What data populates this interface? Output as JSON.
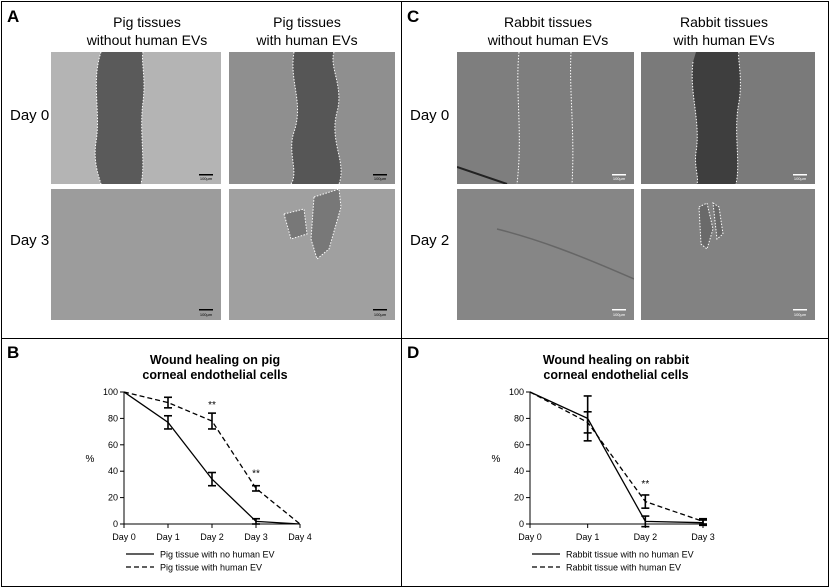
{
  "panels": {
    "A": {
      "letter": "A",
      "col1": "Pig tissues\nwithout human EVs",
      "col2": "Pig tissues\nwith human EVs",
      "row1": "Day 0",
      "row2": "Day 3"
    },
    "C": {
      "letter": "C",
      "col1": "Rabbit tissues\nwithout human EVs",
      "col2": "Rabbit tissues\nwith human EVs",
      "row1": "Day 0",
      "row2": "Day 2"
    },
    "B": {
      "letter": "B",
      "title": "Wound healing on pig\ncorneal endothelial cells"
    },
    "D": {
      "letter": "D",
      "title": "Wound healing on rabbit\ncorneal endothelial cells"
    }
  },
  "scale_bar_label": "100µm",
  "colors": {
    "micro_light": "#a9a9a9",
    "micro_dark": "#5f5f5f",
    "line": "#000000"
  },
  "chart_data": [
    {
      "type": "line",
      "title": "Wound healing on pig\ncorneal endothelial cells",
      "xlabel": "",
      "ylabel": "%",
      "categories": [
        "Day 0",
        "Day 1",
        "Day 2",
        "Day 3",
        "Day 4"
      ],
      "ylim": [
        0,
        100
      ],
      "yticks": [
        0,
        20,
        40,
        60,
        80,
        100
      ],
      "series": [
        {
          "name": "Pig tissue with no human EV",
          "style": "solid",
          "values": [
            100,
            77,
            34,
            2,
            0
          ],
          "errors": [
            0,
            5,
            5,
            2,
            0
          ]
        },
        {
          "name": "Pig tissue with human EV",
          "style": "dashed",
          "values": [
            100,
            92,
            78,
            27,
            0
          ],
          "errors": [
            0,
            4,
            6,
            2,
            0
          ]
        }
      ],
      "annotations": [
        {
          "text": "**",
          "x": "Day 2",
          "y": 88
        },
        {
          "text": "**",
          "x": "Day 3",
          "y": 36
        }
      ],
      "legend": "bottom"
    },
    {
      "type": "line",
      "title": "Wound healing on rabbit\ncorneal endothelial cells",
      "xlabel": "",
      "ylabel": "%",
      "categories": [
        "Day 0",
        "Day 1",
        "Day 2",
        "Day 3"
      ],
      "ylim": [
        0,
        100
      ],
      "yticks": [
        0,
        20,
        40,
        60,
        80,
        100
      ],
      "series": [
        {
          "name": "Rabbit tissue with no human EV",
          "style": "solid",
          "values": [
            100,
            80,
            2,
            1
          ],
          "errors": [
            0,
            17,
            4,
            2
          ]
        },
        {
          "name": "Rabbit tissue with human EV",
          "style": "dashed",
          "values": [
            100,
            77,
            17,
            2
          ],
          "errors": [
            0,
            8,
            5,
            2
          ]
        }
      ],
      "annotations": [
        {
          "text": "**",
          "x": "Day 2",
          "y": 28
        }
      ],
      "legend": "bottom"
    }
  ]
}
